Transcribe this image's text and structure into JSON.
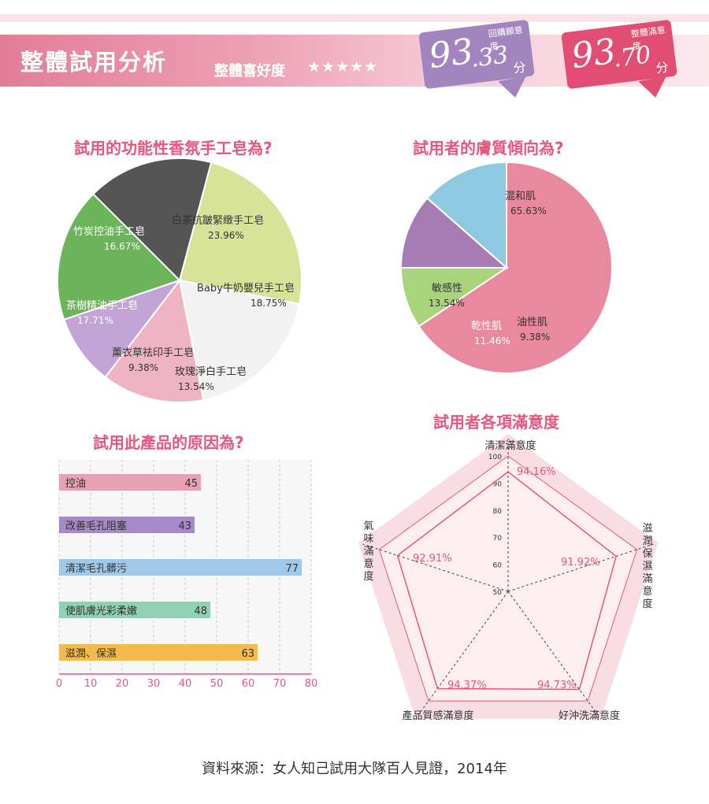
{
  "header": {
    "title": "整體試用分析",
    "preference_label": "整體喜好度",
    "stars": "★★★★★",
    "star_rating": 4.5,
    "badges": [
      {
        "label": "回購願意度",
        "value": "93",
        "decimal": ".33",
        "unit": "分"
      },
      {
        "label": "整體滿意度",
        "value": "93",
        "decimal": ".70",
        "unit": "分"
      }
    ]
  },
  "colors": {
    "accent": "#e5577d",
    "pink": "#e8a0b4",
    "purple": "#a285be",
    "blue": "#9ec9ea",
    "green": "#8fd1b0",
    "yellow": "#f3bb4c"
  },
  "chart_data": [
    {
      "type": "pie",
      "title": "試用的功能性香氛手工皂為?",
      "slices": [
        {
          "label": "白茶抗皺緊緻手工皂",
          "value": 23.96,
          "display": "23.96%",
          "color": "#d8e39a"
        },
        {
          "label": "Baby牛奶嬰兒手工皂",
          "value": 18.75,
          "display": "18.75%",
          "color": "#f2f2f2"
        },
        {
          "label": "玫瑰淨白手工皂",
          "value": 13.54,
          "display": "13.54%",
          "color": "#eeb4c4"
        },
        {
          "label": "薰衣草祛印手工皂",
          "value": 9.38,
          "display": "9.38%",
          "color": "#c3a4d6"
        },
        {
          "label": "茶樹精油手工皂",
          "value": 17.71,
          "display": "17.71%",
          "color": "#6bb45a"
        },
        {
          "label": "竹炭控油手工皂",
          "value": 16.67,
          "display": "16.67%",
          "color": "#555555"
        }
      ]
    },
    {
      "type": "pie",
      "title": "試用者的膚質傾向為?",
      "slices": [
        {
          "label": "混和肌",
          "value": 65.63,
          "display": "65.63%",
          "color": "#e8899f"
        },
        {
          "label": "油性肌",
          "value": 9.38,
          "display": "9.38%",
          "color": "#a9d47c"
        },
        {
          "label": "乾性肌",
          "value": 11.46,
          "display": "11.46%",
          "color": "#a77bb4"
        },
        {
          "label": "敏感性",
          "value": 13.54,
          "display": "13.54%",
          "color": "#8dc9e0"
        }
      ]
    },
    {
      "type": "bar",
      "title": "試用此產品的原因為?",
      "categories": [
        "控油",
        "改善毛孔阻塞",
        "清潔毛孔髒污",
        "使肌膚光彩柔嫩",
        "滋潤、保濕"
      ],
      "values": [
        45,
        43,
        77,
        48,
        63
      ],
      "colors": [
        "#e8a0b4",
        "#a48ac6",
        "#9ec9ea",
        "#8fd1b0",
        "#f3bb4c"
      ],
      "xlim": [
        0,
        80
      ],
      "xticks": [
        "0",
        "10",
        "20",
        "30",
        "40",
        "50",
        "60",
        "70",
        "80"
      ]
    },
    {
      "type": "radar",
      "title": "試用者各項滿意度",
      "axes": [
        "清潔滿意度",
        "滋潤保濕滿意度",
        "好沖洗滿意度",
        "產品質感滿意度",
        "氣味滿意度"
      ],
      "values": [
        94.16,
        91.92,
        94.73,
        94.37,
        92.91
      ],
      "display": [
        "94.16%",
        "91.92%",
        "94.73%",
        "94.37%",
        "92.91%"
      ],
      "range": [
        50,
        100
      ],
      "ticks": [
        "50",
        "60",
        "70",
        "80",
        "90",
        "100"
      ]
    }
  ],
  "source": "資料來源：女人知己試用大隊百人見證，2014年"
}
